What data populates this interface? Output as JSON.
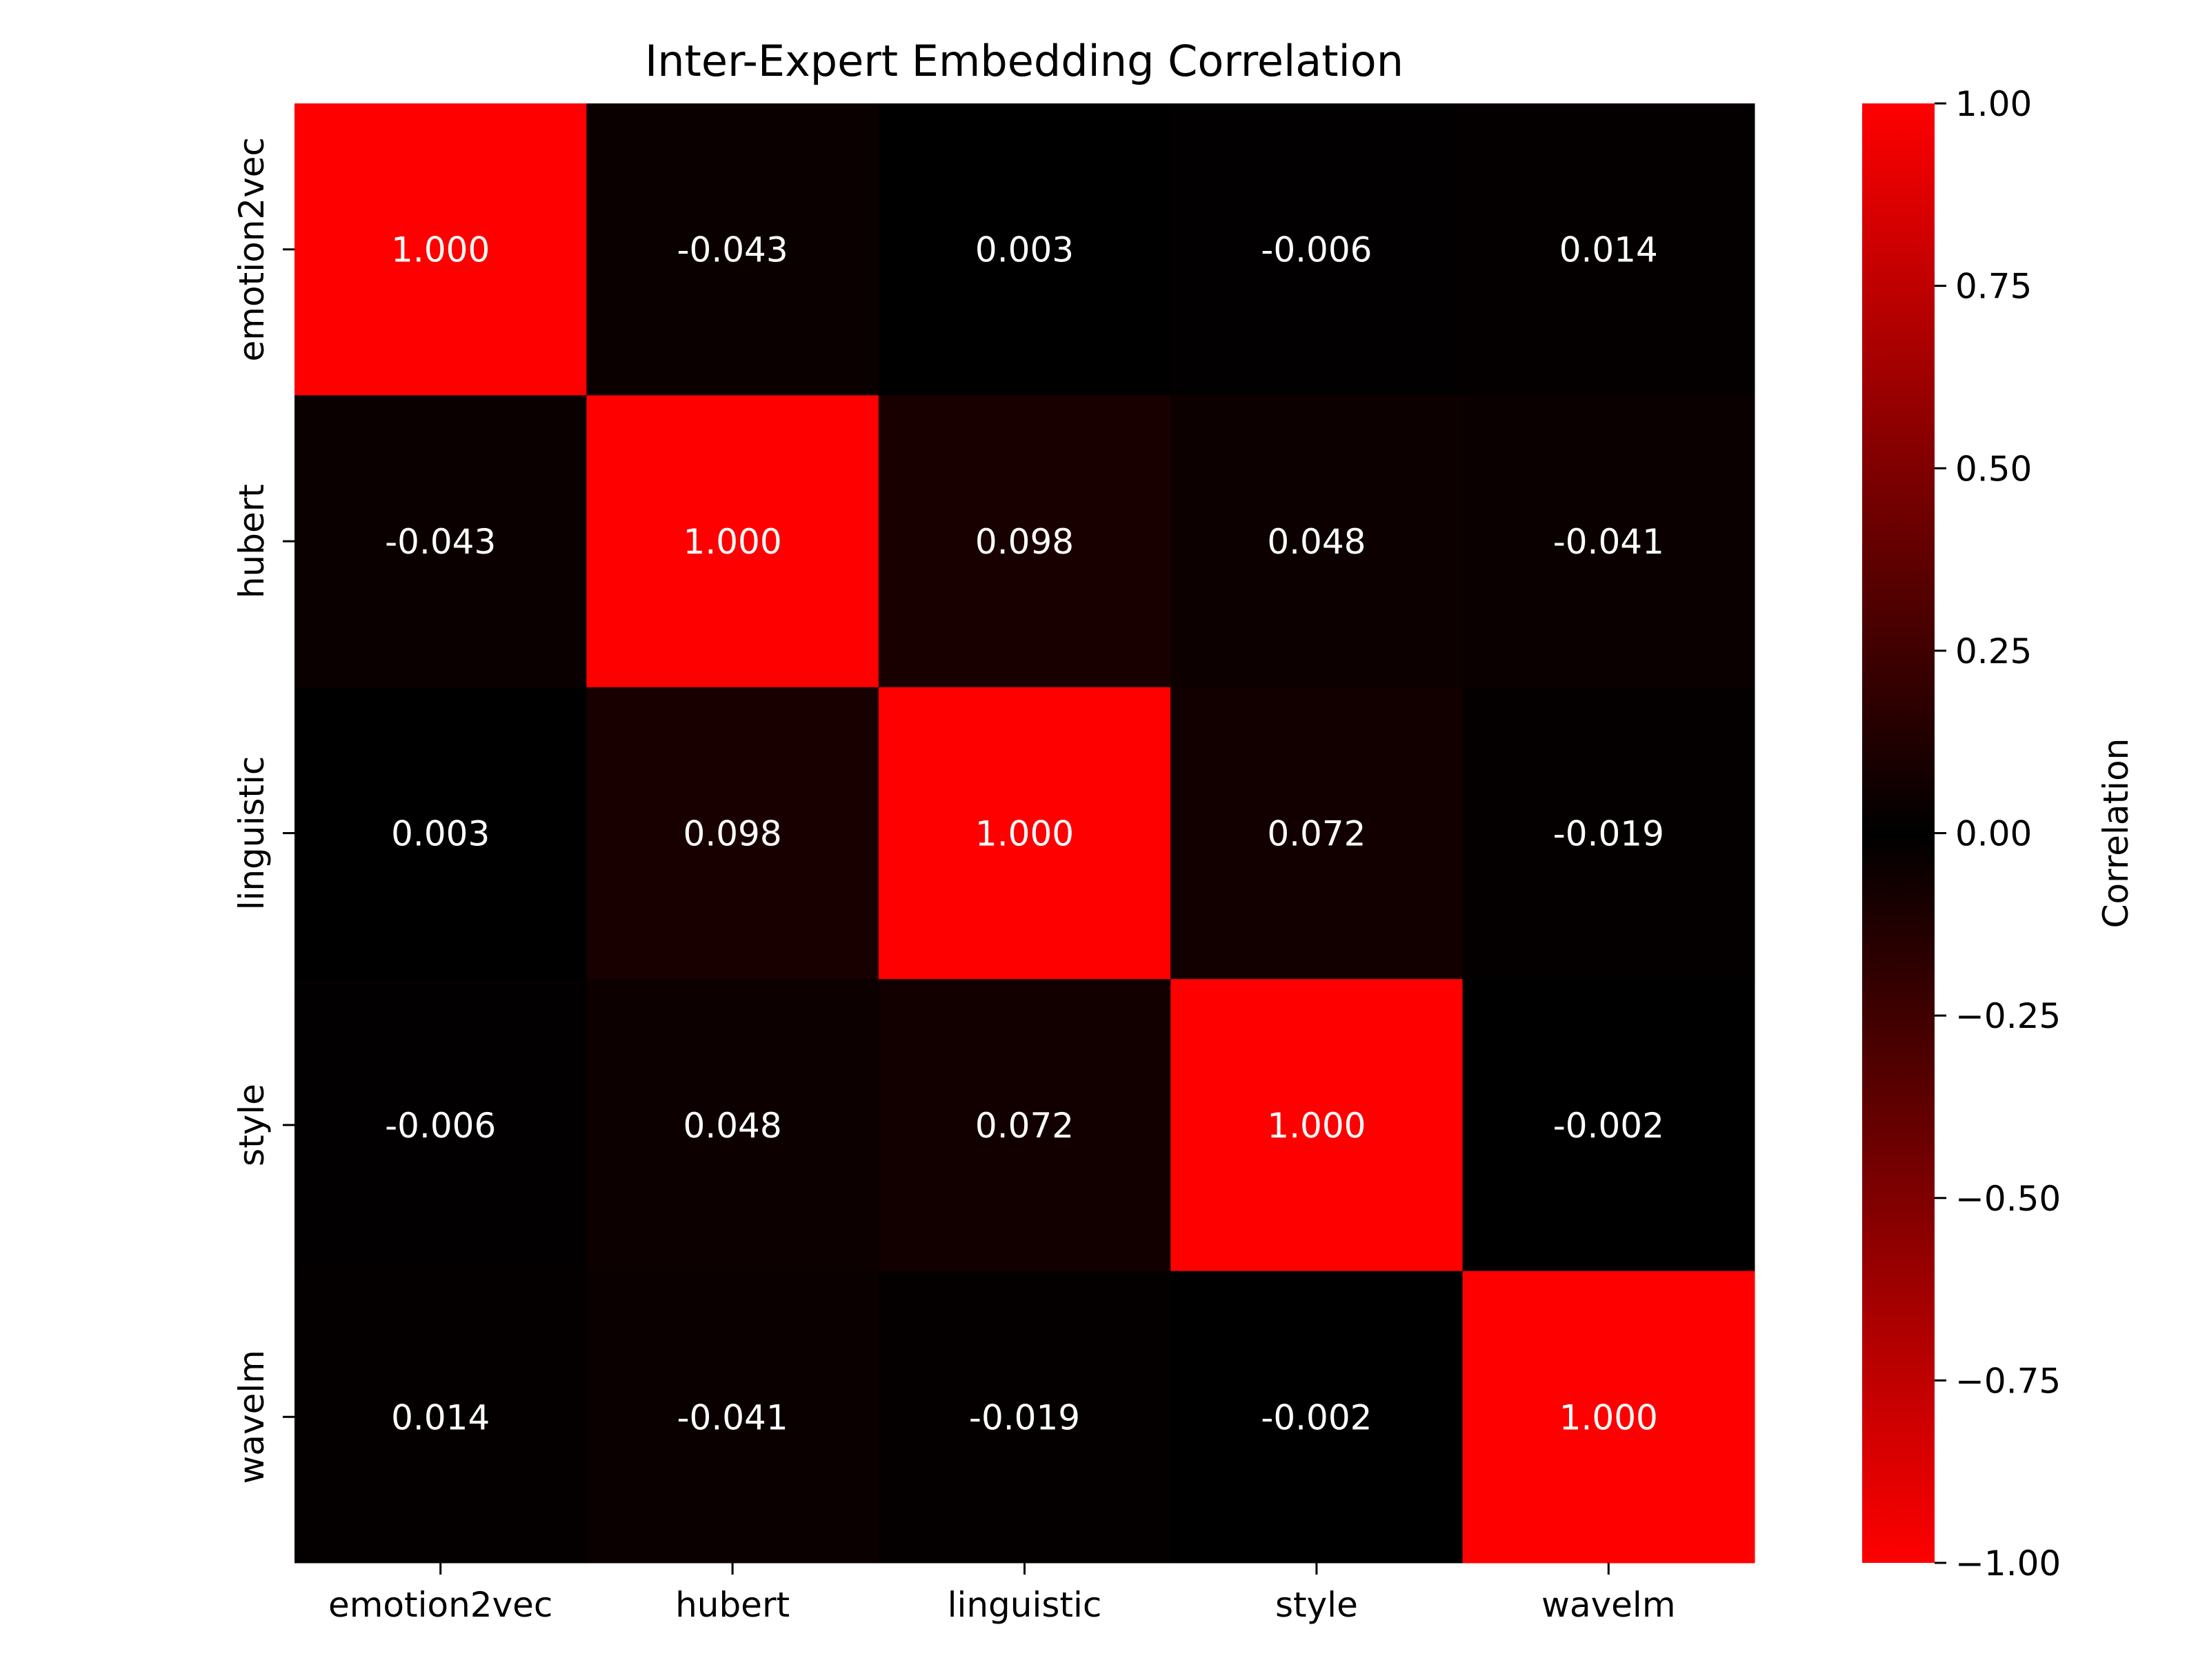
{
  "chart_data": {
    "type": "heatmap",
    "title": "Inter-Expert Embedding Correlation",
    "x_categories": [
      "emotion2vec",
      "hubert",
      "linguistic",
      "style",
      "wavelm"
    ],
    "y_categories": [
      "emotion2vec",
      "hubert",
      "linguistic",
      "style",
      "wavelm"
    ],
    "values": [
      [
        1.0,
        -0.043,
        0.003,
        -0.006,
        0.014
      ],
      [
        -0.043,
        1.0,
        0.098,
        0.048,
        -0.041
      ],
      [
        0.003,
        0.098,
        1.0,
        0.072,
        -0.019
      ],
      [
        -0.006,
        0.048,
        0.072,
        1.0,
        -0.002
      ],
      [
        0.014,
        -0.041,
        -0.019,
        -0.002,
        1.0
      ]
    ],
    "cell_labels": [
      [
        "1.000",
        "-0.043",
        "0.003",
        "-0.006",
        "0.014"
      ],
      [
        "-0.043",
        "1.000",
        "0.098",
        "0.048",
        "-0.041"
      ],
      [
        "0.003",
        "0.098",
        "1.000",
        "0.072",
        "-0.019"
      ],
      [
        "-0.006",
        "0.048",
        "0.072",
        "1.000",
        "-0.002"
      ],
      [
        "0.014",
        "-0.041",
        "-0.019",
        "-0.002",
        "1.000"
      ]
    ],
    "colorbar": {
      "label": "Correlation",
      "vmin": -1.0,
      "vmax": 1.0,
      "ticks": [
        1.0,
        0.75,
        0.5,
        0.25,
        0.0,
        -0.25,
        -0.5,
        -0.75,
        -1.0
      ],
      "tick_labels": [
        "1.00",
        "0.75",
        "0.50",
        "0.25",
        "0.00",
        "−0.25",
        "−0.50",
        "−0.75",
        "−1.00"
      ],
      "colors": {
        "extreme": "#ff0000",
        "center": "#000000"
      }
    },
    "annotation_color": "#ffffff",
    "grid": false,
    "legend": "colorbar-right"
  }
}
